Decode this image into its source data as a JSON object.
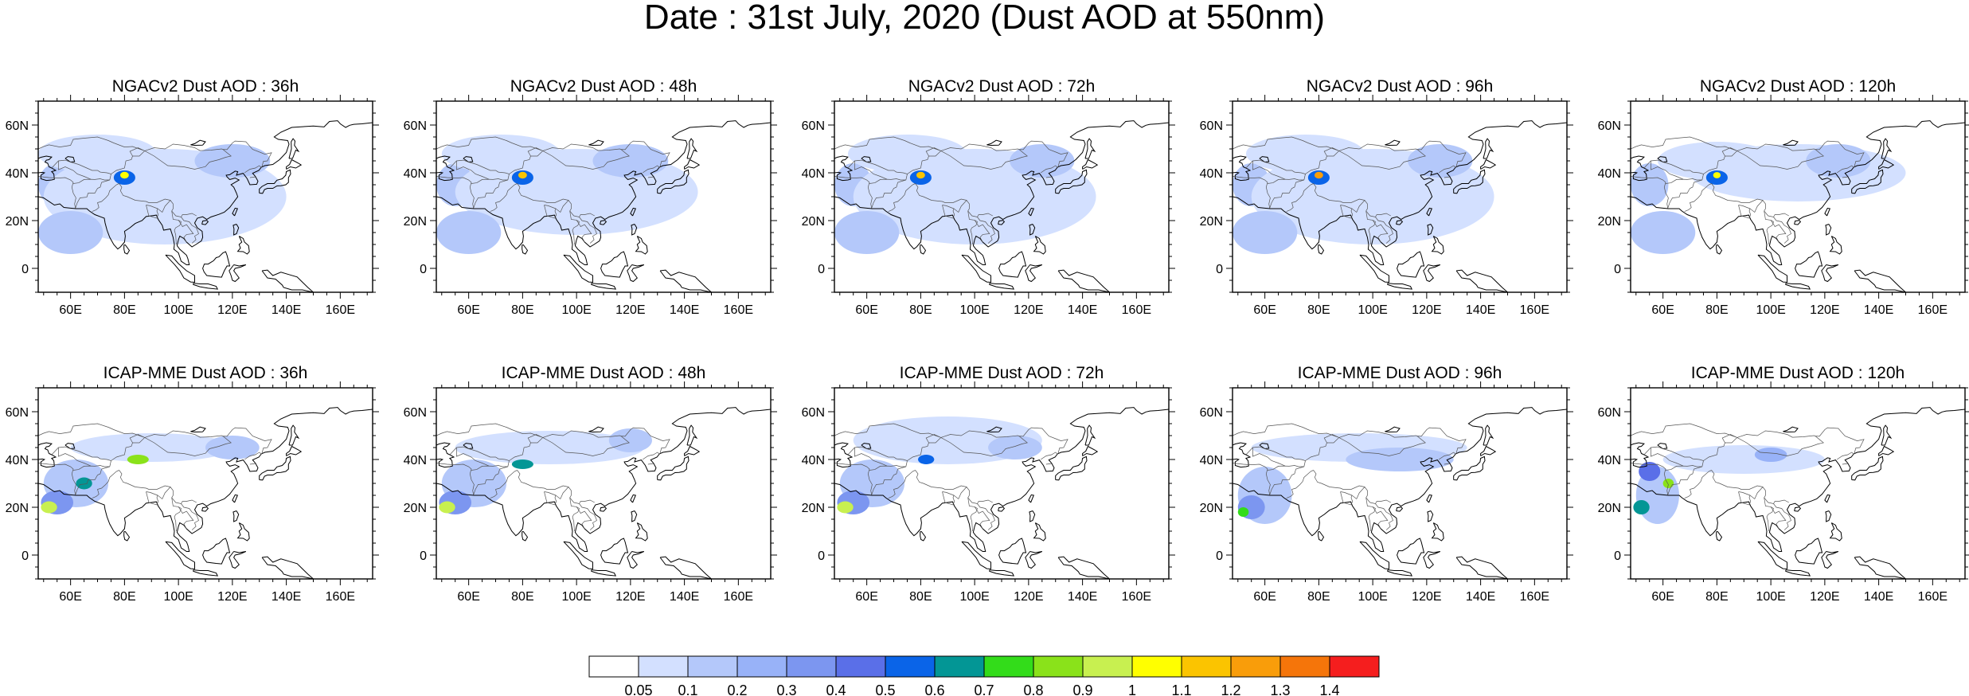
{
  "title": "Date : 31st July, 2020 (Dust AOD at 550nm)",
  "axes": {
    "lon_range": [
      48,
      172
    ],
    "lat_range": [
      -10,
      70
    ],
    "lon_ticks": [
      "60E",
      "80E",
      "100E",
      "120E",
      "140E",
      "160E"
    ],
    "lon_tick_values": [
      60,
      80,
      100,
      120,
      140,
      160
    ],
    "lat_ticks": [
      "60N",
      "40N",
      "20N",
      "0"
    ],
    "lat_tick_values": [
      60,
      40,
      20,
      0
    ]
  },
  "panels": [
    {
      "model": "NGACv2",
      "title": "NGACv2 Dust AOD : 36h",
      "lead": "36h"
    },
    {
      "model": "NGACv2",
      "title": "NGACv2 Dust AOD : 48h",
      "lead": "48h"
    },
    {
      "model": "NGACv2",
      "title": "NGACv2 Dust AOD : 72h",
      "lead": "72h"
    },
    {
      "model": "NGACv2",
      "title": "NGACv2 Dust AOD : 96h",
      "lead": "96h"
    },
    {
      "model": "NGACv2",
      "title": "NGACv2 Dust AOD : 120h",
      "lead": "120h"
    },
    {
      "model": "ICAP-MME",
      "title": "ICAP-MME Dust AOD : 36h",
      "lead": "36h"
    },
    {
      "model": "ICAP-MME",
      "title": "ICAP-MME Dust AOD : 48h",
      "lead": "48h"
    },
    {
      "model": "ICAP-MME",
      "title": "ICAP-MME Dust AOD : 72h",
      "lead": "72h"
    },
    {
      "model": "ICAP-MME",
      "title": "ICAP-MME Dust AOD : 96h",
      "lead": "96h"
    },
    {
      "model": "ICAP-MME",
      "title": "ICAP-MME Dust AOD : 120h",
      "lead": "120h"
    }
  ],
  "colorbar": {
    "labels": [
      "0.05",
      "0.1",
      "0.2",
      "0.3",
      "0.4",
      "0.5",
      "0.6",
      "0.7",
      "0.8",
      "0.9",
      "1",
      "1.1",
      "1.2",
      "1.3",
      "1.4"
    ],
    "colors": [
      "#ffffff",
      "#d3e0ff",
      "#b4c8fa",
      "#98b2f8",
      "#7c96f0",
      "#5a6fe8",
      "#0a64e8",
      "#039695",
      "#33dc1a",
      "#8ae21a",
      "#c8f050",
      "#ffff00",
      "#fbc400",
      "#f99d0a",
      "#f5750a",
      "#f51e1e"
    ]
  },
  "map_colors": {
    "coast": "#000000",
    "border": "#555555"
  }
}
